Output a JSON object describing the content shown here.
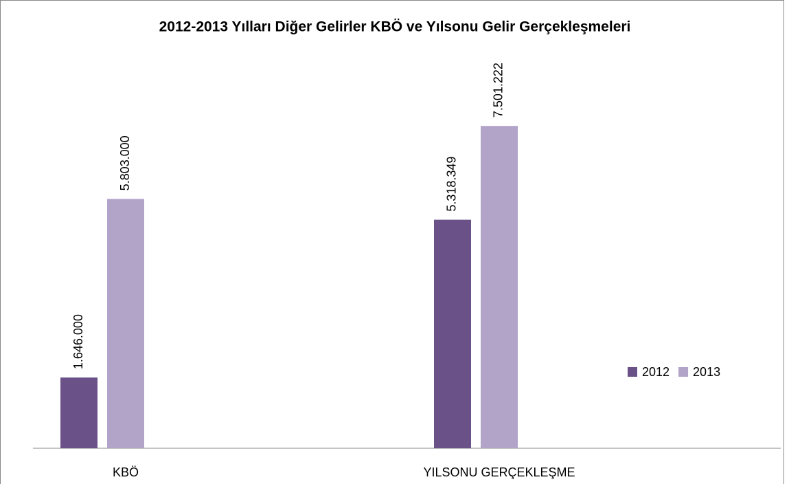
{
  "chart_data": {
    "type": "bar",
    "title": "2012-2013 Yılları Diğer Gelirler KBÖ ve Yılsonu Gelir Gerçekleşmeleri",
    "categories": [
      "KBÖ",
      "YILSONU GERÇEKLEŞME"
    ],
    "series": [
      {
        "name": "2012",
        "color": "#6a5288",
        "values": [
          1646000,
          5318349
        ],
        "value_labels": [
          "1.646.000",
          "5.318.349"
        ]
      },
      {
        "name": "2013",
        "color": "#b2a3c9",
        "values": [
          5803000,
          7501222
        ],
        "value_labels": [
          "5.803.000",
          "7.501.222"
        ]
      }
    ],
    "ylim": [
      0,
      8000000
    ],
    "legend": "right"
  }
}
